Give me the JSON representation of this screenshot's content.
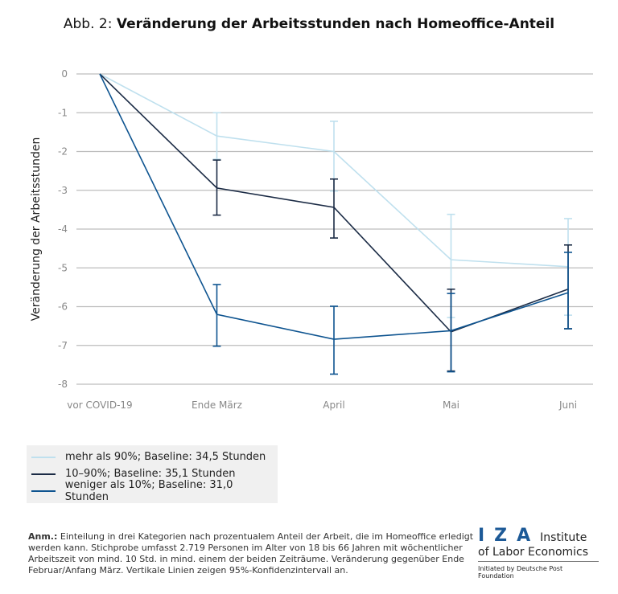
{
  "title_prefix": "Abb. 2: ",
  "title_main": "Veränderung der Arbeitsstunden nach Homeoffice-Anteil",
  "chart_data": {
    "type": "line",
    "title": "Veränderung der Arbeitsstunden nach Homeoffice-Anteil",
    "ylabel": "Veränderung der Arbeitsstunden",
    "xlabel": "",
    "categories": [
      "vor COVID-19",
      "Ende März",
      "April",
      "Mai",
      "Juni"
    ],
    "ylim": [
      -8,
      0
    ],
    "yticks": [
      0,
      -1,
      -2,
      -3,
      -4,
      -5,
      -6,
      -7,
      -8
    ],
    "grid": true,
    "legend_position": "bottom-left",
    "error_bars": "95%-Konfidenzintervall",
    "series": [
      {
        "name": "mehr als 90%; Baseline: 34,5 Stunden",
        "color": "#bfe0ee",
        "values": [
          0,
          -1.6,
          -2.0,
          -4.79,
          -4.97
        ],
        "ci_upper": [
          null,
          -1.0,
          -1.22,
          -3.62,
          -3.73
        ],
        "ci_lower": [
          null,
          -2.2,
          -3.02,
          -6.28,
          -6.22
        ]
      },
      {
        "name": "10–90%; Baseline: 35,1 Stunden",
        "color": "#1b2b45",
        "values": [
          0,
          -2.94,
          -3.44,
          -6.65,
          -5.55
        ],
        "ci_upper": [
          null,
          -2.22,
          -2.71,
          -5.55,
          -4.41
        ],
        "ci_lower": [
          null,
          -3.64,
          -4.23,
          -7.66,
          -6.57
        ]
      },
      {
        "name": "weniger als 10%; Baseline: 31,0 Stunden",
        "color": "#0e5490",
        "values": [
          0,
          -6.2,
          -6.84,
          -6.62,
          -5.64
        ],
        "ci_upper": [
          null,
          -5.43,
          -5.99,
          -5.66,
          -4.6
        ],
        "ci_lower": [
          null,
          -7.02,
          -7.74,
          -7.68,
          -6.57
        ]
      }
    ]
  },
  "note_label": "Anm.:",
  "note_text": " Einteilung in drei Kategorien nach prozentualem Anteil der Arbeit, die im Homeoffice erledigt werden kann. Stichprobe umfasst 2.719 Personen im Alter von 18 bis 66 Jahren mit wöchentlicher Arbeitszeit von mind. 10 Std. in mind. einem der beiden Zeiträume. Veränderung gegenüber Ende Februar/Anfang März. Vertikale Linien zeigen 95%-Konfidenzintervall an.",
  "logo": {
    "letters": "IZA",
    "line1": "Institute",
    "line2": "of Labor Economics",
    "line3": "Initiated by Deutsche Post Foundation"
  }
}
